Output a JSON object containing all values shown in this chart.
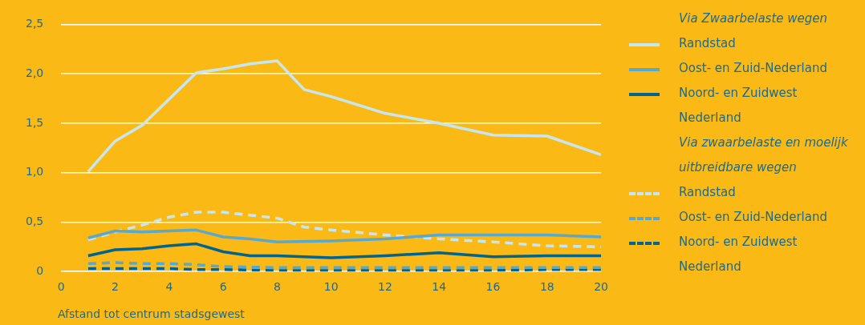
{
  "chart_data": {
    "type": "line",
    "xlabel": "Afstand tot centrum stadsgewest",
    "annotations": [
      "Via Zwaarbelaste wegen",
      "Via zwaarbelaste en moelijk uitbreidbare wegen"
    ],
    "xlim": [
      0,
      20
    ],
    "xticks": [
      0,
      2,
      4,
      6,
      8,
      10,
      12,
      14,
      16,
      18,
      20
    ],
    "ylim": [
      0,
      2.5
    ],
    "yticks": [
      0,
      {
        "value": 0.5,
        "label": "0,5"
      },
      {
        "value": 1,
        "label": "1,0"
      },
      {
        "value": 1.5,
        "label": "1,5"
      },
      {
        "value": 2,
        "label": "2,0"
      },
      {
        "value": 2.5,
        "label": "2,5"
      }
    ],
    "grid": "y",
    "legend": "right",
    "marker": "none",
    "series": [
      {
        "name": "Randstad",
        "color": "#c6e6f2",
        "line_style": "solid",
        "x": [
          1,
          2,
          3,
          5,
          6,
          7,
          8,
          9,
          10,
          12,
          14,
          16,
          18,
          20
        ],
        "values": [
          1.01,
          1.32,
          1.48,
          2.01,
          2.05,
          2.1,
          2.13,
          1.84,
          1.77,
          1.6,
          1.5,
          1.38,
          1.37,
          1.18
        ]
      },
      {
        "name": "Oost- en Zuid-Nederland",
        "color": "#5aa9cc",
        "line_style": "solid",
        "x": [
          1,
          2,
          3,
          5,
          6,
          7,
          8,
          10,
          12,
          14,
          16,
          18,
          20
        ],
        "values": [
          0.34,
          0.41,
          0.4,
          0.42,
          0.35,
          0.33,
          0.3,
          0.31,
          0.33,
          0.37,
          0.37,
          0.37,
          0.35
        ]
      },
      {
        "name": "Noord- en Zuidwest Nederland",
        "color": "#00648f",
        "line_style": "solid",
        "x": [
          1,
          2,
          3,
          4,
          5,
          6,
          7,
          8,
          10,
          12,
          14,
          16,
          18,
          20
        ],
        "values": [
          0.16,
          0.22,
          0.23,
          0.26,
          0.28,
          0.2,
          0.16,
          0.16,
          0.14,
          0.16,
          0.19,
          0.15,
          0.16,
          0.16
        ]
      },
      {
        "name": "Randstad",
        "color": "#c6e6f2",
        "line_style": "dashed",
        "x": [
          1,
          2,
          3,
          4,
          5,
          6,
          7,
          8,
          9,
          10,
          12,
          14,
          16,
          18,
          20
        ],
        "values": [
          0.32,
          0.4,
          0.47,
          0.55,
          0.6,
          0.6,
          0.57,
          0.54,
          0.45,
          0.42,
          0.37,
          0.33,
          0.3,
          0.26,
          0.25
        ]
      },
      {
        "name": "Oost- en Zuid-Nederland",
        "color": "#5aa9cc",
        "line_style": "dashed",
        "x": [
          1,
          2,
          3,
          4,
          5,
          6,
          8,
          10,
          14,
          20
        ],
        "values": [
          0.08,
          0.09,
          0.08,
          0.08,
          0.07,
          0.05,
          0.04,
          0.04,
          0.04,
          0.04
        ]
      },
      {
        "name": "Noord- en Zuidwest Nederland",
        "color": "#00648f",
        "line_style": "dashed",
        "x": [
          1,
          2,
          4,
          5,
          6,
          8,
          10,
          16,
          18,
          20
        ],
        "values": [
          0.03,
          0.03,
          0.03,
          0.02,
          0.02,
          0.01,
          0.01,
          0.01,
          0.02,
          0.02
        ]
      }
    ]
  }
}
